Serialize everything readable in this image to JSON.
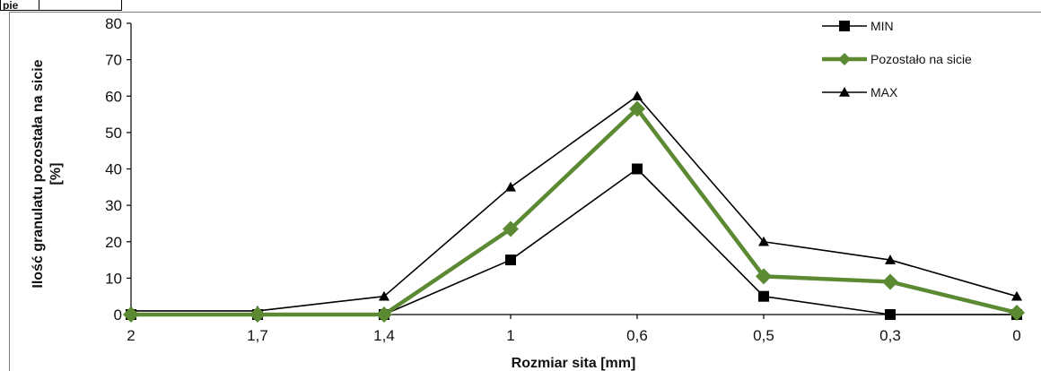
{
  "header": {
    "cells": [
      "pie",
      ""
    ]
  },
  "chart_data": {
    "type": "line",
    "title": "",
    "xlabel": "Rozmiar sita [mm]",
    "ylabel": "Ilość granulatu pozostała na sicie [%]",
    "ylabel_lines": [
      "Ilość  granulatu pozostała na sicie",
      "[%]"
    ],
    "categories": [
      "2",
      "1,7",
      "1,4",
      "1",
      "0,6",
      "0,5",
      "0,3",
      "0"
    ],
    "ylim": [
      0,
      80
    ],
    "yticks": [
      "0",
      "10",
      "20",
      "30",
      "40",
      "50",
      "60",
      "70",
      "80"
    ],
    "grid": false,
    "legend_position": "top-right",
    "series": [
      {
        "name": "MIN",
        "marker": "square",
        "color": "#000000",
        "values": [
          0,
          0,
          0,
          15,
          40,
          5,
          0,
          0
        ]
      },
      {
        "name": "Pozostało na sicie",
        "marker": "diamond",
        "color": "#5b8a33",
        "values": [
          0,
          0,
          0,
          23.5,
          56.5,
          10.5,
          9,
          0.5
        ]
      },
      {
        "name": "MAX",
        "marker": "triangle",
        "color": "#000000",
        "values": [
          1,
          1,
          5,
          35,
          60,
          20,
          15,
          5
        ]
      }
    ]
  }
}
